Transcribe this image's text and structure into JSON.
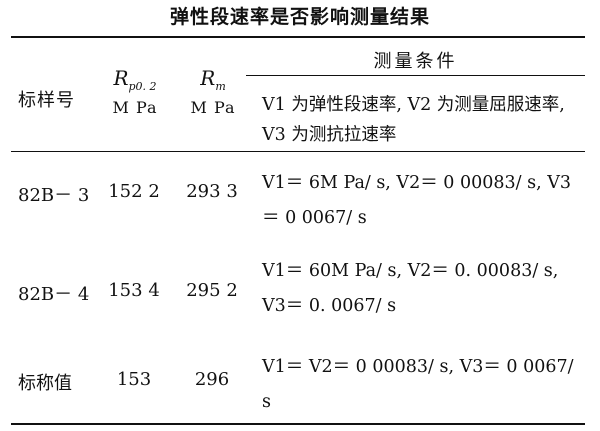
{
  "title": "弹性段速率是否影响测量结果",
  "header": {
    "sample": "标样号",
    "rp_symbol": "R",
    "rp_subscript": "p0. 2",
    "rp_unit": "M Pa",
    "rm_symbol": "R",
    "rm_subscript": "m",
    "rm_unit": "M Pa",
    "conditions": "测量条件",
    "conditions_desc": "V1 为弹性段速率, V2 为测量屈服速率, V3 为测抗拉速率"
  },
  "rows": [
    {
      "sample": "82B－ 3",
      "rp": "152 2",
      "rm": "293 3",
      "condition": "V1＝ 6M Pa/ s, V2＝ 0 00083/ s, V3＝ 0 0067/ s"
    },
    {
      "sample": "82B－ 4",
      "rp": "153 4",
      "rm": "295 2",
      "condition": "V1＝ 60M Pa/ s, V2＝ 0. 00083/ s, V3＝ 0. 0067/ s"
    },
    {
      "sample": "标称值",
      "rp": "153",
      "rm": "296",
      "condition": "V1＝ V2＝ 0 00083/ s, V3＝ 0 0067/ s"
    }
  ]
}
